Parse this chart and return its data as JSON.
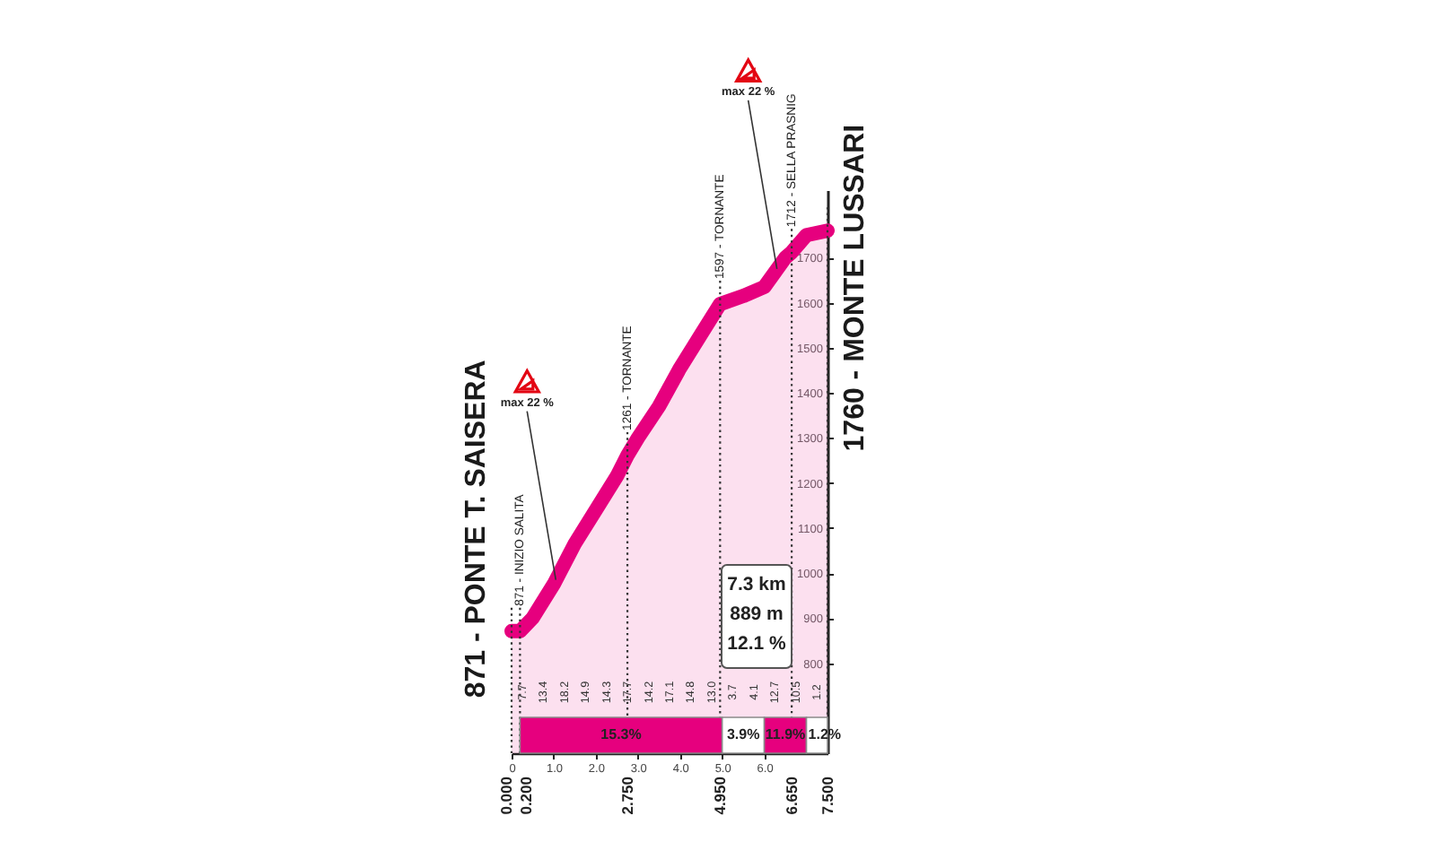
{
  "chart_data": {
    "type": "area",
    "x": [
      0,
      0.2,
      0.5,
      1,
      1.5,
      2,
      2.5,
      2.75,
      3,
      3.5,
      4,
      4.5,
      4.95,
      5.5,
      6,
      6.5,
      6.65,
      7,
      7.5
    ],
    "series": [
      {
        "color": "#e6007e",
        "values": [
          871,
          871,
          900,
          975,
          1065,
          1140,
          1215,
          1261,
          1300,
          1370,
          1455,
          1530,
          1597,
          1615,
          1635,
          1700,
          1712,
          1750,
          1760
        ]
      }
    ],
    "xlim": [
      0,
      7.5
    ],
    "xticks": [
      0,
      {
        "value": 1,
        "label": "1.0"
      },
      {
        "value": 2,
        "label": "2.0"
      },
      {
        "value": 3,
        "label": "3.0"
      },
      {
        "value": 4,
        "label": "4.0"
      },
      {
        "value": 5,
        "label": "5.0"
      },
      {
        "value": 6,
        "label": "6.0"
      }
    ],
    "ylim": [
      600,
      1850
    ],
    "yticks": [
      800,
      900,
      1000,
      1100,
      1200,
      1300,
      1400,
      1500,
      1600,
      1700
    ],
    "ref_lines": [
      {
        "axis": "x",
        "value": 0,
        "label": "0.000",
        "line_style": "dotted"
      },
      {
        "axis": "x",
        "value": 0.2,
        "label": "0.200",
        "line_style": "dotted"
      },
      {
        "axis": "x",
        "value": 2.75,
        "label": "2.750",
        "line_style": "dotted"
      },
      {
        "axis": "x",
        "value": 4.95,
        "label": "4.950",
        "line_style": "dotted"
      },
      {
        "axis": "x",
        "value": 6.65,
        "label": "6.650",
        "line_style": "dotted"
      },
      {
        "axis": "x",
        "value": 7.5,
        "label": "7.500",
        "line_style": "dotted"
      }
    ],
    "bands": [
      {
        "axis": "x",
        "from": 0.2,
        "to": 5,
        "label": "15.3%",
        "color": "#e6007e"
      },
      {
        "axis": "x",
        "from": 5,
        "to": 6,
        "label": "3.9%",
        "color": "#ffffff"
      },
      {
        "axis": "x",
        "from": 6,
        "to": 7,
        "label": "11.9%",
        "color": "#e6007e"
      },
      {
        "axis": "x",
        "from": 7,
        "to": 7.5,
        "label": "1.2%",
        "color": "#ffffff"
      }
    ],
    "annotations": [
      {
        "text": "871 - PONTE T. SAISERA",
        "x": 0,
        "y": 871
      },
      {
        "text": "871 - INIZIO SALITA",
        "x": 0.2,
        "y": 871
      },
      {
        "text": "max 22 %",
        "x": 1.05,
        "y": 985
      },
      {
        "text": "1261 - TORNANTE",
        "x": 2.75,
        "y": 1261
      },
      {
        "text": "1597 - TORNANTE",
        "x": 4.95,
        "y": 1597
      },
      {
        "text": "max 22 %",
        "x": 6.3,
        "y": 1675
      },
      {
        "text": "1712 - SELLA PRASNIG",
        "x": 6.65,
        "y": 1712
      },
      {
        "text": "1760 - MONTE LUSSARI",
        "x": 7.5,
        "y": 1760
      },
      "7.3 km\n889 m\n12.1 %",
      "7.7",
      "13.4",
      "18.2",
      "14.9",
      "14.3",
      "17.7",
      "14.2",
      "17.1",
      "14.8",
      "13.0",
      "3.7",
      "4.1",
      "12.7",
      "10.5",
      "1.2"
    ]
  }
}
